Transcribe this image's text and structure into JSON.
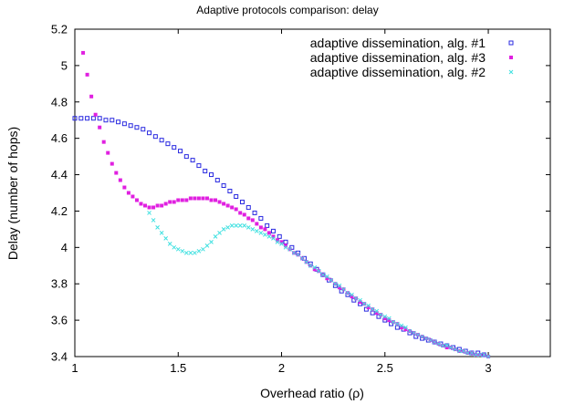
{
  "chart_data": {
    "type": "scatter",
    "title": "Adaptive protocols comparison: delay",
    "xlabel": "Overhead ratio (ρ)",
    "ylabel": "Delay (number of hops)",
    "xlim": [
      1,
      3.3
    ],
    "ylim": [
      3.4,
      5.2
    ],
    "xticks": [
      1,
      1.5,
      2,
      2.5,
      3
    ],
    "xtick_labels": [
      "1",
      "1.5",
      "2",
      "2.5",
      "3"
    ],
    "yticks": [
      3.4,
      3.6,
      3.8,
      4,
      4.2,
      4.4,
      4.6,
      4.8,
      5,
      5.2
    ],
    "ytick_labels": [
      "3.4",
      "3.6",
      "3.8",
      "4",
      "4.2",
      "4.4",
      "4.6",
      "4.8",
      "5",
      "5.2"
    ],
    "grid": false,
    "legend_position": "top-right",
    "series": [
      {
        "name": "adaptive dissemination, alg. #1",
        "color": "#2a2ae0",
        "marker": "square-open",
        "x": [
          1.0,
          1.03,
          1.06,
          1.09,
          1.12,
          1.15,
          1.18,
          1.21,
          1.24,
          1.27,
          1.3,
          1.33,
          1.36,
          1.39,
          1.42,
          1.45,
          1.48,
          1.51,
          1.54,
          1.57,
          1.6,
          1.63,
          1.66,
          1.69,
          1.72,
          1.75,
          1.78,
          1.81,
          1.84,
          1.87,
          1.9,
          1.93,
          1.96,
          1.99,
          2.02,
          2.05,
          2.08,
          2.11,
          2.14,
          2.17,
          2.2,
          2.23,
          2.26,
          2.29,
          2.32,
          2.35,
          2.38,
          2.41,
          2.44,
          2.47,
          2.5,
          2.53,
          2.56,
          2.59,
          2.62,
          2.65,
          2.68,
          2.71,
          2.74,
          2.77,
          2.8,
          2.83,
          2.86,
          2.89,
          2.92,
          2.95,
          2.98
        ],
        "y": [
          4.71,
          4.71,
          4.71,
          4.71,
          4.71,
          4.7,
          4.7,
          4.69,
          4.68,
          4.67,
          4.66,
          4.65,
          4.63,
          4.61,
          4.59,
          4.57,
          4.55,
          4.53,
          4.5,
          4.48,
          4.45,
          4.42,
          4.4,
          4.37,
          4.34,
          4.31,
          4.28,
          4.25,
          4.22,
          4.19,
          4.16,
          4.12,
          4.09,
          4.06,
          4.03,
          4.0,
          3.97,
          3.94,
          3.91,
          3.88,
          3.85,
          3.82,
          3.79,
          3.76,
          3.74,
          3.71,
          3.69,
          3.66,
          3.64,
          3.62,
          3.6,
          3.58,
          3.56,
          3.55,
          3.53,
          3.51,
          3.5,
          3.49,
          3.48,
          3.47,
          3.46,
          3.45,
          3.44,
          3.43,
          3.42,
          3.42,
          3.41
        ]
      },
      {
        "name": "adaptive dissemination, alg. #3",
        "color": "#e020e0",
        "marker": "square-filled",
        "x": [
          1.04,
          1.06,
          1.08,
          1.1,
          1.12,
          1.14,
          1.16,
          1.18,
          1.2,
          1.22,
          1.24,
          1.26,
          1.28,
          1.3,
          1.32,
          1.34,
          1.36,
          1.38,
          1.4,
          1.42,
          1.44,
          1.46,
          1.48,
          1.5,
          1.52,
          1.54,
          1.56,
          1.58,
          1.6,
          1.62,
          1.64,
          1.66,
          1.68,
          1.7,
          1.72,
          1.74,
          1.76,
          1.78,
          1.8,
          1.82,
          1.84,
          1.86,
          1.88,
          1.9,
          1.92,
          1.94,
          1.96,
          1.98,
          2.0,
          2.02,
          2.04,
          2.06,
          2.08,
          2.1,
          2.12,
          2.14,
          2.16,
          2.18,
          2.2,
          2.22,
          2.24,
          2.26,
          2.28,
          2.3,
          2.32,
          2.34,
          2.36,
          2.38,
          2.4,
          2.42,
          2.44,
          2.46,
          2.48,
          2.5,
          2.52,
          2.54,
          2.56,
          2.58,
          2.6,
          2.62,
          2.64,
          2.66,
          2.68,
          2.7,
          2.72,
          2.74,
          2.76,
          2.78,
          2.8,
          2.82,
          2.84,
          2.86,
          2.88,
          2.9,
          2.92,
          2.94,
          2.96,
          2.98,
          3.0
        ],
        "y": [
          5.07,
          4.95,
          4.83,
          4.73,
          4.66,
          4.58,
          4.52,
          4.46,
          4.41,
          4.37,
          4.33,
          4.3,
          4.28,
          4.26,
          4.24,
          4.23,
          4.22,
          4.22,
          4.23,
          4.23,
          4.24,
          4.25,
          4.25,
          4.26,
          4.26,
          4.26,
          4.27,
          4.27,
          4.27,
          4.27,
          4.27,
          4.26,
          4.26,
          4.25,
          4.24,
          4.23,
          4.22,
          4.21,
          4.19,
          4.18,
          4.16,
          4.15,
          4.13,
          4.11,
          4.1,
          4.08,
          4.06,
          4.04,
          4.03,
          4.01,
          3.99,
          3.97,
          3.96,
          3.94,
          3.92,
          3.9,
          3.88,
          3.87,
          3.85,
          3.83,
          3.82,
          3.8,
          3.78,
          3.77,
          3.75,
          3.73,
          3.72,
          3.7,
          3.69,
          3.67,
          3.66,
          3.64,
          3.63,
          3.61,
          3.6,
          3.59,
          3.58,
          3.56,
          3.55,
          3.54,
          3.53,
          3.52,
          3.51,
          3.5,
          3.49,
          3.48,
          3.47,
          3.46,
          3.45,
          3.45,
          3.44,
          3.43,
          3.43,
          3.42,
          3.42,
          3.41,
          3.41,
          3.41,
          3.4
        ]
      },
      {
        "name": "adaptive dissemination, alg. #2",
        "color": "#3ee0e0",
        "marker": "cross",
        "x": [
          1.36,
          1.38,
          1.4,
          1.42,
          1.44,
          1.46,
          1.48,
          1.5,
          1.52,
          1.54,
          1.56,
          1.58,
          1.6,
          1.62,
          1.64,
          1.66,
          1.68,
          1.7,
          1.72,
          1.74,
          1.76,
          1.78,
          1.8,
          1.82,
          1.84,
          1.86,
          1.88,
          1.9,
          1.92,
          1.94,
          1.96,
          1.98,
          2.0,
          2.02,
          2.04,
          2.06,
          2.08,
          2.1,
          2.12,
          2.14,
          2.16,
          2.18,
          2.2,
          2.22,
          2.24,
          2.26,
          2.28,
          2.3,
          2.32,
          2.34,
          2.36,
          2.38,
          2.4,
          2.42,
          2.44,
          2.46,
          2.48,
          2.5,
          2.52,
          2.54,
          2.56,
          2.58,
          2.6,
          2.62,
          2.64,
          2.66,
          2.68,
          2.7,
          2.72,
          2.74,
          2.76,
          2.78,
          2.8,
          2.82,
          2.84,
          2.86,
          2.88,
          2.9,
          2.92,
          2.94,
          2.96,
          2.98,
          3.0
        ],
        "y": [
          4.19,
          4.15,
          4.11,
          4.08,
          4.05,
          4.02,
          4.0,
          3.99,
          3.98,
          3.97,
          3.97,
          3.97,
          3.98,
          3.99,
          4.01,
          4.03,
          4.06,
          4.08,
          4.1,
          4.11,
          4.12,
          4.12,
          4.12,
          4.12,
          4.11,
          4.1,
          4.09,
          4.08,
          4.07,
          4.06,
          4.05,
          4.03,
          4.02,
          4.0,
          3.99,
          3.97,
          3.96,
          3.94,
          3.92,
          3.9,
          3.89,
          3.87,
          3.85,
          3.84,
          3.82,
          3.8,
          3.79,
          3.77,
          3.75,
          3.74,
          3.72,
          3.71,
          3.69,
          3.68,
          3.66,
          3.65,
          3.63,
          3.62,
          3.61,
          3.59,
          3.58,
          3.57,
          3.56,
          3.54,
          3.53,
          3.52,
          3.51,
          3.5,
          3.49,
          3.48,
          3.47,
          3.46,
          3.46,
          3.45,
          3.44,
          3.43,
          3.43,
          3.42,
          3.42,
          3.41,
          3.41,
          3.41,
          3.4
        ]
      }
    ]
  }
}
